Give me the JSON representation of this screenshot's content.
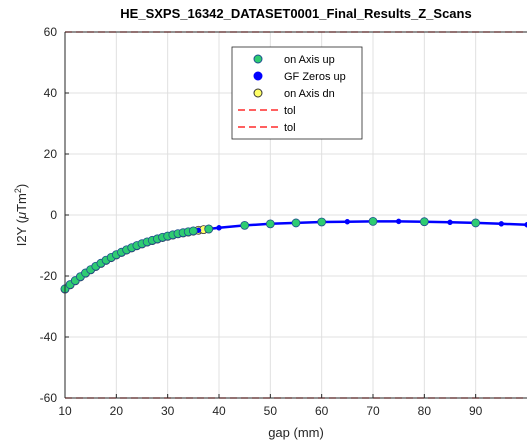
{
  "chart_data": {
    "type": "line",
    "title": "HE_SXPS_16342_DATASET0001_Final_Results_Z_Scans",
    "xlabel": "gap (mm)",
    "ylabel_main": "I2Y (",
    "ylabel_mu": "μ",
    "ylabel_unit": "Tm",
    "ylabel_sup": "2",
    "ylabel_close": ")",
    "xlim": [
      10,
      100
    ],
    "ylim": [
      -60,
      60
    ],
    "x_ticks": [
      10,
      20,
      30,
      40,
      50,
      60,
      70,
      80,
      90
    ],
    "y_ticks": [
      60,
      40,
      20,
      0,
      -20,
      -40,
      -60
    ],
    "grid": true,
    "legend_position": "top-center",
    "colors": {
      "on_axis_up": "#2ecc71",
      "on_axis_up_edge": "#1f4f8f",
      "gf_zeros_up": "#0000ff",
      "on_axis_dn": "#ffff66",
      "on_axis_dn_edge": "#333333",
      "tol": "#ff0000",
      "line": "#0000ff",
      "grid": "#e0e0e0",
      "axis": "#262626"
    },
    "series": [
      {
        "name": "on Axis up",
        "marker": "circle",
        "x": [
          10,
          11,
          12,
          13,
          14,
          15,
          16,
          17,
          18,
          19,
          20,
          21,
          22,
          23,
          24,
          25,
          26,
          27,
          28,
          29,
          30,
          31,
          32,
          33,
          34,
          35,
          38,
          45,
          50,
          55,
          60,
          70,
          80,
          90
        ],
        "y": [
          -24.2,
          -22.8,
          -21.5,
          -20.2,
          -19.0,
          -17.9,
          -16.8,
          -15.8,
          -14.8,
          -13.9,
          -13.0,
          -12.2,
          -11.4,
          -10.7,
          -10.0,
          -9.4,
          -8.8,
          -8.3,
          -7.8,
          -7.3,
          -6.9,
          -6.5,
          -6.1,
          -5.8,
          -5.5,
          -5.2,
          -4.6,
          -3.4,
          -2.9,
          -2.6,
          -2.3,
          -2.1,
          -2.2,
          -2.6
        ]
      },
      {
        "name": "GF Zeros up",
        "marker": "circle",
        "x": [
          10,
          11,
          12,
          13,
          14,
          15,
          16,
          17,
          18,
          19,
          20,
          22,
          24,
          26,
          28,
          30,
          32,
          34,
          36,
          38,
          40,
          45,
          50,
          55,
          60,
          65,
          70,
          75,
          80,
          85,
          90,
          95,
          100
        ],
        "y": [
          -24.2,
          -22.8,
          -21.5,
          -20.2,
          -19.0,
          -17.9,
          -16.8,
          -15.8,
          -14.8,
          -13.9,
          -13.0,
          -11.4,
          -10.0,
          -8.8,
          -7.8,
          -6.9,
          -6.1,
          -5.5,
          -5.0,
          -4.6,
          -4.2,
          -3.4,
          -2.9,
          -2.6,
          -2.3,
          -2.2,
          -2.1,
          -2.1,
          -2.2,
          -2.4,
          -2.6,
          -2.9,
          -3.2
        ]
      },
      {
        "name": "on Axis dn",
        "marker": "circle",
        "x": [
          10,
          11,
          12,
          13,
          14,
          15,
          16,
          17,
          18,
          19,
          20,
          21,
          22,
          23,
          24,
          25,
          26,
          27,
          28,
          29,
          30,
          31,
          32,
          33,
          34,
          35,
          36,
          37,
          38
        ],
        "y": [
          -24.3,
          -22.9,
          -21.6,
          -20.3,
          -19.1,
          -18.0,
          -16.9,
          -15.9,
          -14.9,
          -14.0,
          -13.1,
          -12.3,
          -11.5,
          -10.8,
          -10.1,
          -9.5,
          -8.9,
          -8.4,
          -7.9,
          -7.4,
          -7.0,
          -6.6,
          -6.2,
          -5.9,
          -5.6,
          -5.3,
          -5.0,
          -4.8,
          -4.6
        ]
      },
      {
        "name": "tol",
        "style": "dashed",
        "x": [
          10,
          100
        ],
        "y": [
          60,
          60
        ]
      },
      {
        "name": "tol",
        "style": "dashed",
        "x": [
          10,
          100
        ],
        "y": [
          -60,
          -60
        ]
      }
    ]
  }
}
